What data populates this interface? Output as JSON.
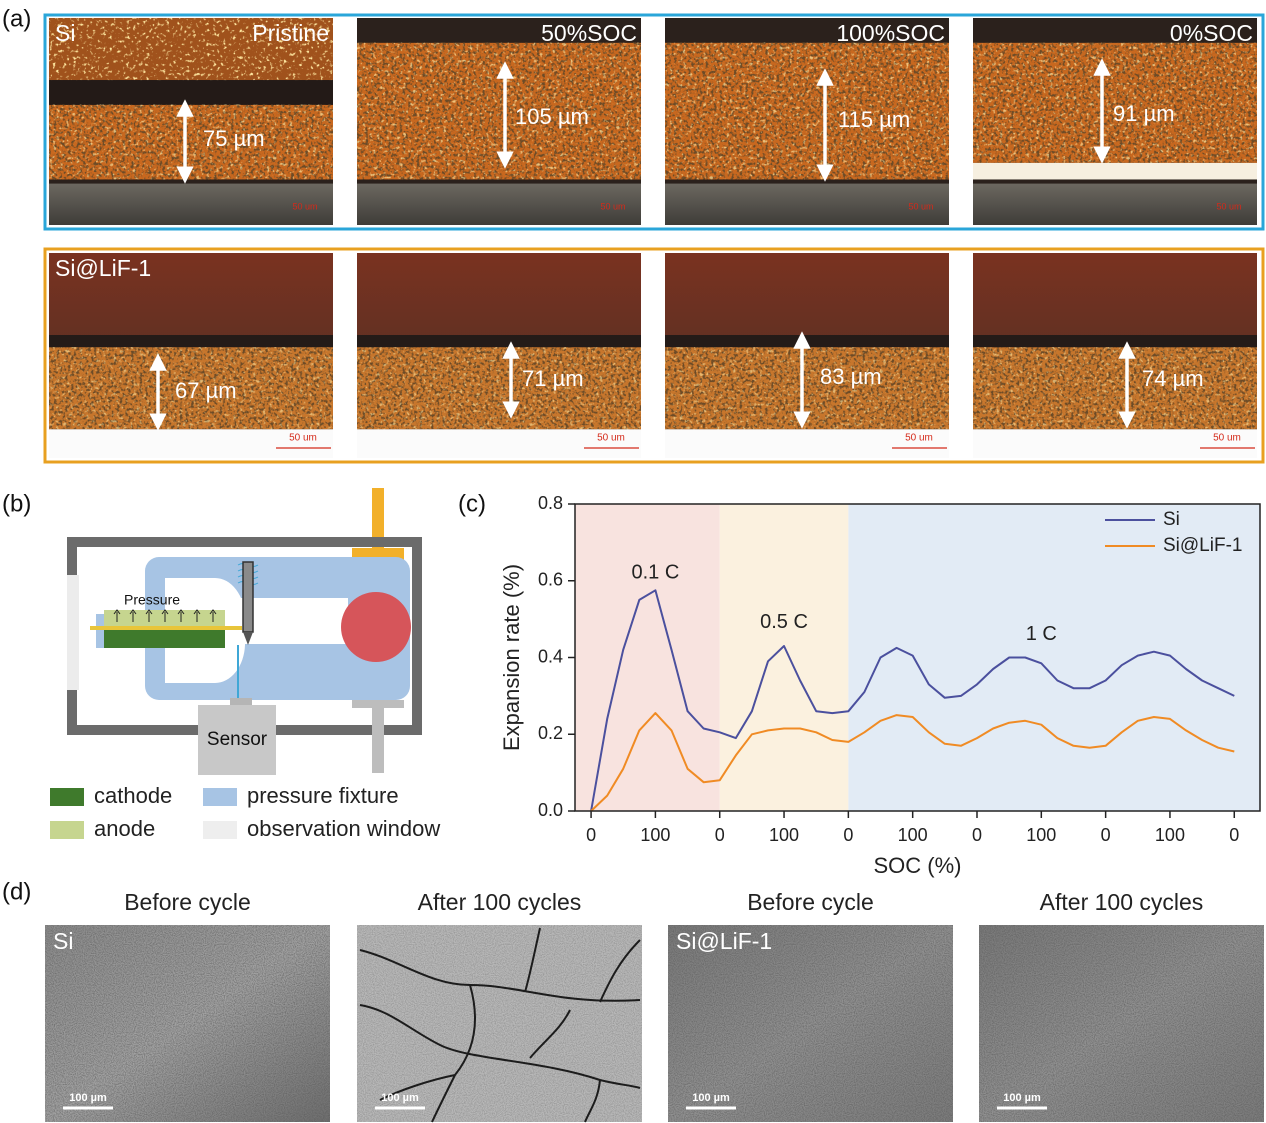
{
  "panel_labels": [
    "(a)",
    "(b)",
    "(c)",
    "(d)"
  ],
  "panel_a": {
    "rows": [
      {
        "sample": "Si",
        "images": [
          {
            "state": "Pristine",
            "thickness": "75 µm",
            "scale_bar": "50 um"
          },
          {
            "state": "50%SOC",
            "thickness": "105 µm",
            "scale_bar": "50 um"
          },
          {
            "state": "100%SOC",
            "thickness": "115 µm",
            "scale_bar": "50 um"
          },
          {
            "state": "0%SOC",
            "thickness": "91 µm",
            "scale_bar": "50 um"
          }
        ]
      },
      {
        "sample": "Si@LiF-1",
        "images": [
          {
            "thickness": "67 µm",
            "scale_bar": "50 um"
          },
          {
            "thickness": "71 µm",
            "scale_bar": "50 um"
          },
          {
            "thickness": "83 µm",
            "scale_bar": "50 um"
          },
          {
            "thickness": "74 µm",
            "scale_bar": "50 um"
          }
        ]
      }
    ]
  },
  "panel_b": {
    "pressure_label": "Pressure",
    "sensor_label": "Sensor",
    "legend": [
      {
        "label": "cathode",
        "color": "#3f7a2c"
      },
      {
        "label": "pressure fixture",
        "color": "#a7c4e4"
      },
      {
        "label": "anode",
        "color": "#c6d58f"
      },
      {
        "label": "observation window",
        "color": "#eeeeee"
      }
    ]
  },
  "chart_data": {
    "type": "line",
    "xlabel": "SOC (%)",
    "ylabel": "Expansion rate (%)",
    "x": [
      0,
      25,
      50,
      75,
      100,
      125,
      150,
      175,
      200,
      225,
      250,
      275,
      300,
      325,
      350,
      375,
      400,
      425,
      450,
      475,
      500,
      525,
      550,
      575,
      600,
      625,
      650,
      675,
      700,
      725,
      750,
      775,
      800,
      825,
      850,
      875,
      900,
      925,
      950,
      975,
      1000
    ],
    "series": [
      {
        "name": "Si",
        "color": "#4b509e",
        "values": [
          0,
          0.24,
          0.42,
          0.55,
          0.575,
          0.42,
          0.26,
          0.215,
          0.205,
          0.19,
          0.26,
          0.39,
          0.43,
          0.34,
          0.26,
          0.255,
          0.26,
          0.31,
          0.4,
          0.425,
          0.405,
          0.33,
          0.295,
          0.3,
          0.33,
          0.37,
          0.4,
          0.4,
          0.385,
          0.34,
          0.32,
          0.32,
          0.34,
          0.38,
          0.405,
          0.415,
          0.405,
          0.37,
          0.34,
          0.32,
          0.3
        ]
      },
      {
        "name": "Si@LiF-1",
        "color": "#f08b24",
        "values": [
          0,
          0.04,
          0.11,
          0.21,
          0.255,
          0.21,
          0.11,
          0.075,
          0.08,
          0.145,
          0.2,
          0.21,
          0.215,
          0.215,
          0.205,
          0.185,
          0.18,
          0.205,
          0.235,
          0.25,
          0.245,
          0.205,
          0.175,
          0.17,
          0.19,
          0.215,
          0.23,
          0.235,
          0.225,
          0.19,
          0.17,
          0.165,
          0.17,
          0.205,
          0.235,
          0.245,
          0.24,
          0.21,
          0.185,
          0.165,
          0.155
        ]
      }
    ],
    "xlim": [
      -25,
      1040
    ],
    "xticks": [
      0,
      100,
      {
        "value": 200,
        "label": "0"
      },
      {
        "value": 300,
        "label": "100"
      },
      {
        "value": 400,
        "label": "0"
      },
      {
        "value": 500,
        "label": "100"
      },
      {
        "value": 600,
        "label": "0"
      },
      {
        "value": 700,
        "label": "100"
      },
      {
        "value": 800,
        "label": "0"
      },
      {
        "value": 900,
        "label": "100"
      },
      {
        "value": 1000,
        "label": "0"
      }
    ],
    "ylim": [
      0,
      0.8
    ],
    "yticks": [
      {
        "value": 0,
        "label": "0.0"
      },
      0.2,
      0.4,
      0.6,
      0.8
    ],
    "regions": [
      {
        "from": -25,
        "to": 200,
        "color": "#f8e3df"
      },
      {
        "from": 200,
        "to": 400,
        "color": "#fbf1df"
      },
      {
        "from": 400,
        "to": 1040,
        "color": "#e2ebf5"
      }
    ],
    "annotations": [
      {
        "text": "0.1 C",
        "x": 100,
        "y": 0.62
      },
      {
        "text": "0.5 C",
        "x": 300,
        "y": 0.49
      },
      {
        "text": "1 C",
        "x": 700,
        "y": 0.46
      }
    ],
    "legend": "upper right"
  },
  "panel_d": {
    "images": [
      {
        "title": "Before cycle",
        "sample": "Si",
        "scale_bar": "100 µm"
      },
      {
        "title": "After 100 cycles",
        "scale_bar": "100 µm"
      },
      {
        "title": "Before cycle",
        "sample": "Si@LiF-1",
        "scale_bar": "100 µm"
      },
      {
        "title": "After 100 cycles",
        "scale_bar": "100 µm"
      }
    ]
  }
}
